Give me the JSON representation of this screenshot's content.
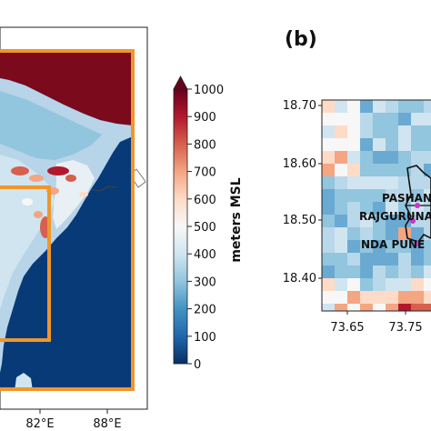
{
  "left_map": {
    "x_ticks": [
      "82°E",
      "88°E"
    ]
  },
  "colorbar": {
    "label": "meters MSL",
    "ticks": [
      "1000",
      "900",
      "800",
      "700",
      "600",
      "500",
      "400",
      "300",
      "200",
      "100",
      "0"
    ],
    "range": [
      0,
      1000
    ],
    "colors": [
      "#053061",
      "#2166ac",
      "#4393c3",
      "#92c5de",
      "#d1e5f0",
      "#f7f7f7",
      "#fddbc7",
      "#f4a582",
      "#d6604d",
      "#b2182b",
      "#67001f"
    ]
  },
  "right_map": {
    "panel_label": "(b)",
    "y_ticks": [
      "18.70",
      "18.60",
      "18.50",
      "18.40"
    ],
    "x_ticks": [
      "73.65",
      "73.75"
    ],
    "sites": [
      "PASHAN",
      "RAJGURUNA",
      "NDA PUNE"
    ],
    "site_marker_color": "#cc33cc"
  },
  "accent_box_color": "#f0962a",
  "sea_color": "#083a78",
  "plateau_high_color": "#7a0a1c"
}
